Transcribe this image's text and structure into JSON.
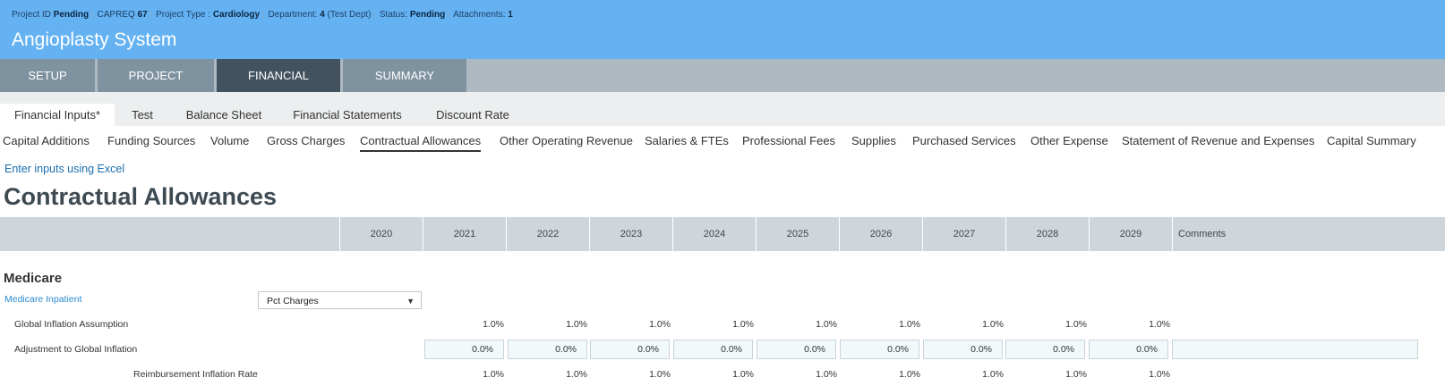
{
  "header": {
    "meta": {
      "project_id_label": "Project ID",
      "project_id_value": "Pending",
      "capreq_label": "CAPREQ",
      "capreq_value": "67",
      "project_type_label": "Project Type :",
      "project_type_value": "Cardiology",
      "department_label": "Department:",
      "department_value": "4",
      "department_name": "(Test Dept)",
      "status_label": "Status:",
      "status_value": "Pending",
      "attachments_label": "Attachments:",
      "attachments_value": "1"
    },
    "title": "Angioplasty System"
  },
  "nav": {
    "tabs": [
      "SETUP",
      "PROJECT",
      "FINANCIAL",
      "SUMMARY"
    ],
    "active": "FINANCIAL"
  },
  "subtabs": {
    "items": [
      "Financial Inputs*",
      "Test",
      "Balance Sheet",
      "Financial Statements",
      "Discount Rate"
    ],
    "active": "Financial Inputs*"
  },
  "sections": {
    "items": [
      "Capital Additions",
      "Funding Sources",
      "Volume",
      "Gross Charges",
      "Contractual Allowances",
      "Other Operating Revenue",
      "Salaries & FTEs",
      "Professional Fees",
      "Supplies",
      "Purchased Services",
      "Other Expense",
      "Statement of Revenue and Expenses",
      "Capital Summary"
    ],
    "active": "Contractual Allowances"
  },
  "excel_link": "Enter inputs using Excel",
  "page_title": "Contractual Allowances",
  "grid": {
    "years": [
      "2020",
      "2021",
      "2022",
      "2023",
      "2024",
      "2025",
      "2026",
      "2027",
      "2028",
      "2029"
    ],
    "comments_header": "Comments"
  },
  "medicare": {
    "title": "Medicare",
    "sub_link": "Medicare Inpatient",
    "method_select": "Pct Charges",
    "rows": {
      "global_inflation": {
        "label": "Global Inflation Assumption",
        "values": [
          "1.0%",
          "1.0%",
          "1.0%",
          "1.0%",
          "1.0%",
          "1.0%",
          "1.0%",
          "1.0%",
          "1.0%"
        ]
      },
      "adjustment": {
        "label": "Adjustment to Global Inflation",
        "values": [
          "0.0%",
          "0.0%",
          "0.0%",
          "0.0%",
          "0.0%",
          "0.0%",
          "0.0%",
          "0.0%",
          "0.0%"
        ],
        "comment": ""
      },
      "reimbursement": {
        "label": "Reimbursement Inflation Rate",
        "values": [
          "1.0%",
          "1.0%",
          "1.0%",
          "1.0%",
          "1.0%",
          "1.0%",
          "1.0%",
          "1.0%",
          "1.0%"
        ]
      }
    }
  },
  "colors": {
    "header_bg": "#64b2f2",
    "nav_bg": "#aeb9c1",
    "nav_tab": "#7f929f",
    "nav_tab_active": "#42525e",
    "grid_header_bg": "#ced6dc",
    "link": "#1a6fae"
  }
}
